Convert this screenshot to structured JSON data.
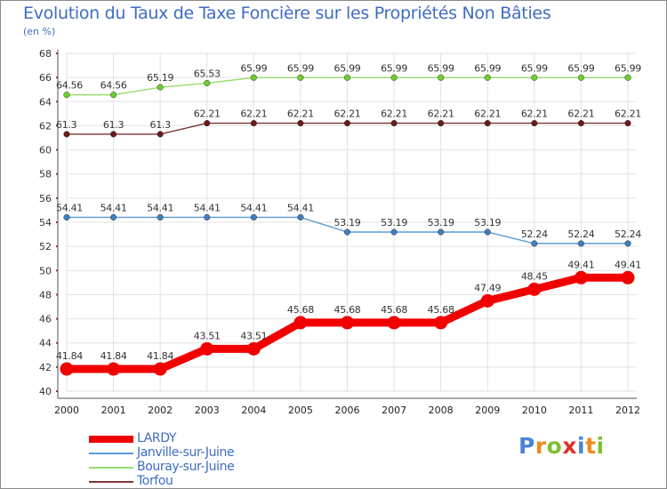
{
  "title": "Evolution du Taux de Taxe Foncière sur les Propriétés Non Bâties",
  "subtitle": "(en %)",
  "logo": {
    "text": "Proxiti",
    "letter_colors": [
      "#4a83d8",
      "#f08a1c",
      "#7fbf30",
      "#d9332b",
      "#4a83d8",
      "#f08a1c",
      "#7fbf30"
    ]
  },
  "chart_data": {
    "type": "line",
    "x": [
      "2000",
      "2001",
      "2002",
      "2003",
      "2004",
      "2005",
      "2006",
      "2007",
      "2008",
      "2009",
      "2010",
      "2011",
      "2012"
    ],
    "ylim": [
      40,
      68
    ],
    "yticks": [
      "40",
      "42",
      "44",
      "46",
      "48",
      "50",
      "52",
      "54",
      "56",
      "58",
      "60",
      "62",
      "64",
      "66",
      "68"
    ],
    "grid": true,
    "legend_position": "bottom-left",
    "series": [
      {
        "name": "LARDY",
        "color": "#f20000",
        "bold": true,
        "values": [
          41.84,
          41.84,
          41.84,
          43.51,
          43.51,
          45.68,
          45.68,
          45.68,
          45.68,
          47.49,
          48.45,
          49.41,
          49.41
        ],
        "labels": [
          "41.84",
          "41.84",
          "41.84",
          "43.51",
          "43.51",
          "45.68",
          "45.68",
          "45.68",
          "45.68",
          "47.49",
          "48.45",
          "49.41",
          "49.41"
        ]
      },
      {
        "name": "Janville-sur-Juine",
        "color": "#5b9bd5",
        "marker": "#3f7fc0",
        "values": [
          54.41,
          54.41,
          54.41,
          54.41,
          54.41,
          54.41,
          53.19,
          53.19,
          53.19,
          53.19,
          52.24,
          52.24,
          52.24
        ],
        "labels": [
          "54.41",
          "54.41",
          "54.41",
          "54.41",
          "54.41",
          "54.41",
          "53.19",
          "53.19",
          "53.19",
          "53.19",
          "52.24",
          "52.24",
          "52.24"
        ]
      },
      {
        "name": "Bouray-sur-Juine",
        "color": "#98dc6e",
        "marker": "#6fcf2e",
        "values": [
          64.56,
          64.56,
          65.19,
          65.53,
          65.99,
          65.99,
          65.99,
          65.99,
          65.99,
          65.99,
          65.99,
          65.99,
          65.99
        ],
        "labels": [
          "64.56",
          "64.56",
          "65.19",
          "65.53",
          "65.99",
          "65.99",
          "65.99",
          "65.99",
          "65.99",
          "65.99",
          "65.99",
          "65.99",
          "65.99"
        ]
      },
      {
        "name": "Torfou",
        "color": "#7b3535",
        "marker": "#6b1a1a",
        "values": [
          61.3,
          61.3,
          61.3,
          62.21,
          62.21,
          62.21,
          62.21,
          62.21,
          62.21,
          62.21,
          62.21,
          62.21,
          62.21
        ],
        "labels": [
          "61.3",
          "61.3",
          "61.3",
          "62.21",
          "62.21",
          "62.21",
          "62.21",
          "62.21",
          "62.21",
          "62.21",
          "62.21",
          "62.21",
          "62.21"
        ]
      }
    ]
  }
}
